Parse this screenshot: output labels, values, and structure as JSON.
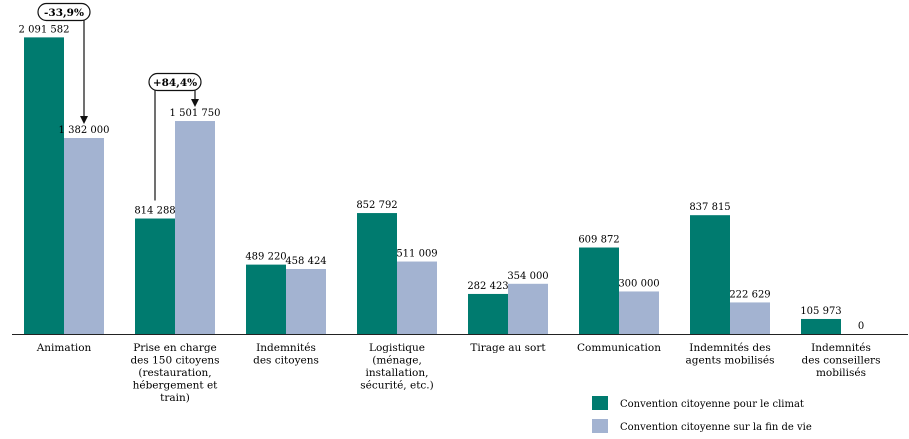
{
  "chart_data": {
    "type": "bar",
    "categories": [
      [
        "Animation"
      ],
      [
        "Prise en charge",
        "des 150 citoyens",
        "(restauration,",
        "hébergement et",
        "train)"
      ],
      [
        "Indemnités",
        "des citoyens"
      ],
      [
        "Logistique",
        "(ménage,",
        "installation,",
        "sécurité, etc.)"
      ],
      [
        "Tirage au sort"
      ],
      [
        "Communication"
      ],
      [
        "Indemnités des",
        "agents mobilisés"
      ],
      [
        "Indemnités",
        "des conseillers",
        "mobilisés"
      ]
    ],
    "series": [
      {
        "name": "Convention citoyenne pour le climat",
        "color": "#007b6f",
        "values": [
          2091582,
          814288,
          489220,
          852792,
          282423,
          609872,
          837815,
          105973
        ],
        "labels": [
          "2 091 582",
          "814 288",
          "489 220",
          "852 792",
          "282 423",
          "609 872",
          "837 815",
          "105 973"
        ]
      },
      {
        "name": "Convention citoyenne sur la fin de vie",
        "color": "#a3b3d1",
        "values": [
          1382000,
          1501750,
          458424,
          511009,
          354000,
          300000,
          222629,
          0
        ],
        "labels": [
          "1 382 000",
          "1 501 750",
          "458 424",
          "511 009",
          "354 000",
          "300 000",
          "222 629",
          "0"
        ]
      }
    ],
    "annotations": [
      {
        "text": "-33,9%",
        "category_index": 0
      },
      {
        "text": "+84,4%",
        "category_index": 1
      }
    ],
    "ylim": [
      0,
      2200000
    ],
    "grid": false,
    "legend_position": "bottom-right"
  }
}
